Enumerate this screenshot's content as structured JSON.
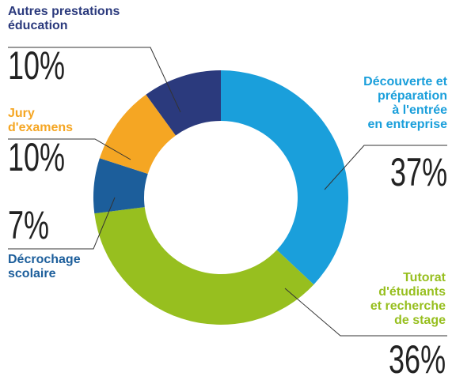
{
  "chart_data": {
    "type": "donut",
    "categories": [
      "Découverte et\npréparation\nà l'entrée\nen entreprise",
      "Tutorat\nd'étudiants\net recherche\nde stage",
      "Décrochage\nscolaire",
      "Jury\nd'examens",
      "Autres prestations\néducation"
    ],
    "values": [
      37,
      36,
      7,
      10,
      10
    ],
    "value_labels": [
      "37%",
      "36%",
      "7%",
      "10%",
      "10%"
    ],
    "colors": [
      "#1a9fdb",
      "#97bf1f",
      "#1c5e9b",
      "#f5a623",
      "#2b3a7d"
    ]
  }
}
